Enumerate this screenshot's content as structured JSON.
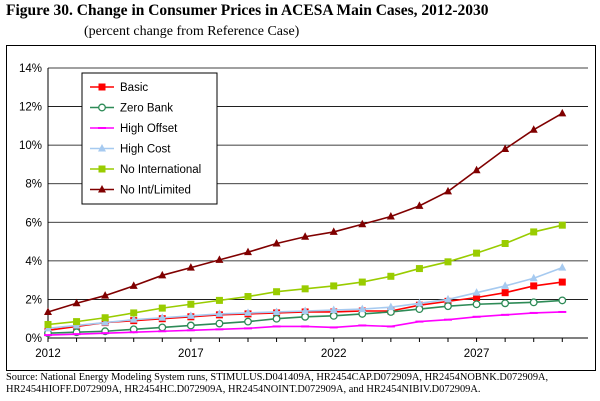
{
  "chart_data": {
    "type": "line",
    "title": "Figure 30.  Change in Consumer Prices in ACESA Main Cases, 2012-2030",
    "subtitle": "(percent change from Reference Case)",
    "xlabel": "",
    "ylabel": "",
    "x": [
      2012,
      2013,
      2014,
      2015,
      2016,
      2017,
      2018,
      2019,
      2020,
      2021,
      2022,
      2023,
      2024,
      2025,
      2026,
      2027,
      2028,
      2029,
      2030
    ],
    "xticks": [
      "2012",
      "2017",
      "2022",
      "2027"
    ],
    "xlim": [
      2012,
      2030.9
    ],
    "ylim": [
      0,
      14
    ],
    "yticks": [
      "0%",
      "2%",
      "4%",
      "6%",
      "8%",
      "10%",
      "12%",
      "14%"
    ],
    "legend_position": "top-left",
    "series": [
      {
        "name": "Basic",
        "color": "#ff0000",
        "marker": "square",
        "values": [
          0.4,
          0.6,
          0.8,
          0.9,
          1.0,
          1.1,
          1.2,
          1.25,
          1.3,
          1.35,
          1.35,
          1.4,
          1.4,
          1.7,
          1.9,
          2.1,
          2.35,
          2.7,
          2.9
        ]
      },
      {
        "name": "Zero Bank",
        "color": "#2e8b57",
        "marker": "circle",
        "values": [
          0.25,
          0.3,
          0.35,
          0.45,
          0.55,
          0.65,
          0.75,
          0.85,
          1.0,
          1.1,
          1.15,
          1.25,
          1.35,
          1.5,
          1.65,
          1.75,
          1.8,
          1.85,
          1.95
        ]
      },
      {
        "name": "High Offset",
        "color": "#ff00ff",
        "marker": "dash",
        "values": [
          0.15,
          0.2,
          0.25,
          0.3,
          0.35,
          0.4,
          0.45,
          0.5,
          0.6,
          0.6,
          0.55,
          0.65,
          0.6,
          0.85,
          0.95,
          1.1,
          1.2,
          1.3,
          1.35
        ]
      },
      {
        "name": "High Cost",
        "color": "#a6caf0",
        "marker": "triangle",
        "values": [
          0.5,
          0.65,
          0.8,
          0.95,
          1.05,
          1.15,
          1.25,
          1.3,
          1.35,
          1.4,
          1.45,
          1.5,
          1.6,
          1.8,
          2.0,
          2.35,
          2.7,
          3.1,
          3.65
        ]
      },
      {
        "name": "No International",
        "color": "#99cc00",
        "marker": "square",
        "values": [
          0.7,
          0.85,
          1.05,
          1.3,
          1.55,
          1.75,
          1.95,
          2.15,
          2.4,
          2.55,
          2.7,
          2.9,
          3.2,
          3.6,
          3.95,
          4.4,
          4.9,
          5.5,
          5.85
        ]
      },
      {
        "name": "No Int/Limited",
        "color": "#800000",
        "marker": "triangle",
        "values": [
          1.35,
          1.8,
          2.2,
          2.7,
          3.25,
          3.65,
          4.05,
          4.45,
          4.9,
          5.25,
          5.5,
          5.9,
          6.3,
          6.85,
          7.6,
          8.7,
          9.8,
          10.8,
          11.65
        ]
      }
    ]
  },
  "source": "Source:  National Energy Modeling System runs, STIMULUS.D041409A, HR2454CAP.D072909A, HR2454NOBNK.D072909A, HR2454HIOFF.D072909A, HR2454HC.D072909A, HR2454NOINT.D072909A, and HR2454NIBIV.D072909A."
}
